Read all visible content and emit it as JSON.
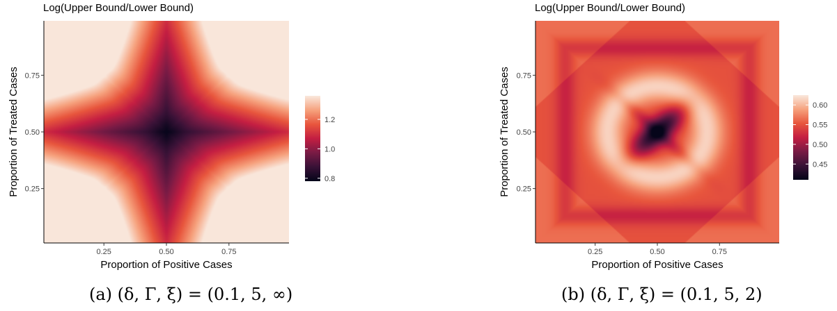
{
  "colors": {
    "scale": [
      "#06051a",
      "#3a1237",
      "#7a1b45",
      "#c41e42",
      "#e8563d",
      "#f6a17d",
      "#f9e6da"
    ]
  },
  "chart_data": [
    {
      "type": "heatmap",
      "title": "Log(Upper Bound/Lower Bound)",
      "xlabel": "Proportion of Positive Cases",
      "ylabel": "Proportion of Treated Cases",
      "xlim": [
        0.01,
        0.99
      ],
      "ylim": [
        0.01,
        0.99
      ],
      "xticks": [
        "0.25",
        "0.50",
        "0.75"
      ],
      "yticks": [
        "0.25",
        "0.50",
        "0.75"
      ],
      "legend_ticks": [
        "0.8",
        "1.0",
        "1.2"
      ],
      "value_range": [
        0.78,
        1.36
      ],
      "legend": "right",
      "grid": false,
      "caption": "(a) (δ, Γ, ξ) = (0.1, 5, ∞)"
    },
    {
      "type": "heatmap",
      "title": "Log(Upper Bound/Lower Bound)",
      "xlabel": "Proportion of Positive Cases",
      "ylabel": "Proportion of Treated Cases",
      "xlim": [
        0.01,
        0.99
      ],
      "ylim": [
        0.01,
        0.99
      ],
      "xticks": [
        "0.25",
        "0.50",
        "0.75"
      ],
      "yticks": [
        "0.25",
        "0.50",
        "0.75"
      ],
      "legend_ticks": [
        "0.45",
        "0.50",
        "0.55",
        "0.60"
      ],
      "value_range": [
        0.41,
        0.625
      ],
      "legend": "right",
      "grid": false,
      "caption": "(b) (δ, Γ, ξ) = (0.1, 5, 2)"
    }
  ]
}
